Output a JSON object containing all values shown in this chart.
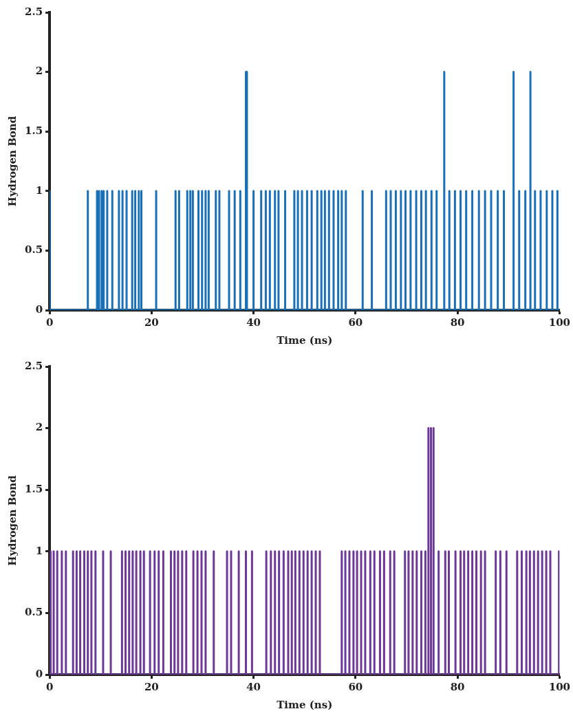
{
  "chart_data": [
    {
      "type": "line",
      "xlabel": "Time (ns)",
      "ylabel": "Hydrogen Bond",
      "xlim": [
        0,
        100
      ],
      "xticks": [
        0,
        20,
        40,
        60,
        80,
        100
      ],
      "ylim": [
        0,
        2.5
      ],
      "yticks": [
        0,
        0.5,
        1,
        1.5,
        2,
        2.5
      ],
      "grid": false,
      "legend": false,
      "marker": "none",
      "line_style": "solid",
      "series": [
        {
          "color": "#1a70b8",
          "x": [
            0,
            0,
            7.5,
            7.5,
            7.5,
            9.3,
            9.3,
            9.3,
            9.7,
            9.7,
            9.7,
            10.2,
            10.2,
            10.2,
            10.6,
            10.6,
            10.6,
            11.3,
            11.3,
            11.3,
            12.3,
            12.3,
            12.3,
            13.6,
            13.6,
            13.6,
            14.3,
            14.3,
            14.3,
            15.1,
            15.1,
            15.1,
            16.2,
            16.2,
            16.2,
            16.8,
            16.8,
            16.8,
            17.5,
            17.5,
            17.5,
            18,
            18,
            18,
            20.9,
            20.9,
            20.9,
            24.7,
            24.7,
            24.7,
            25.4,
            25.4,
            25.4,
            27,
            27,
            27,
            27.6,
            27.6,
            27.6,
            28.1,
            28.1,
            28.1,
            29.2,
            29.2,
            29.2,
            29.9,
            29.9,
            29.9,
            30.6,
            30.6,
            30.6,
            31.2,
            31.2,
            31.2,
            32.6,
            32.6,
            32.6,
            33.3,
            33.3,
            33.3,
            35.2,
            35.2,
            35.2,
            36.3,
            36.3,
            36.3,
            37.4,
            37.4,
            37.4,
            38.5,
            38.5,
            38.5,
            38.7,
            38.7,
            38.7,
            40,
            40,
            40,
            41.5,
            41.5,
            41.5,
            42.4,
            42.4,
            42.4,
            43.2,
            43.2,
            43.2,
            44.2,
            44.2,
            44.2,
            44.9,
            44.9,
            44.9,
            46.2,
            46.2,
            46.2,
            48,
            48,
            48,
            48.7,
            48.7,
            48.7,
            49.5,
            49.5,
            49.5,
            50.5,
            50.5,
            50.5,
            51.4,
            51.4,
            51.4,
            52.5,
            52.5,
            52.5,
            53.3,
            53.3,
            53.3,
            54,
            54,
            54,
            54.8,
            54.8,
            54.8,
            55.7,
            55.7,
            55.7,
            56.6,
            56.6,
            56.6,
            57.3,
            57.3,
            57.3,
            58.1,
            58.1,
            58.1,
            61.4,
            61.4,
            61.4,
            63.2,
            63.2,
            63.2,
            66,
            66,
            66,
            66.9,
            66.9,
            66.9,
            67.9,
            67.9,
            67.9,
            68.9,
            68.9,
            68.9,
            69.8,
            69.8,
            69.8,
            70.8,
            70.8,
            70.8,
            71.9,
            71.9,
            71.9,
            72.9,
            72.9,
            72.9,
            73.8,
            73.8,
            73.8,
            74.9,
            74.9,
            74.9,
            75.9,
            75.9,
            75.9,
            77.4,
            77.4,
            77.4,
            78.4,
            78.4,
            78.4,
            79.5,
            79.5,
            79.5,
            80.6,
            80.6,
            80.6,
            81.7,
            81.7,
            81.7,
            82.9,
            82.9,
            82.9,
            84.2,
            84.2,
            84.2,
            85.4,
            85.4,
            85.4,
            86.6,
            86.6,
            86.6,
            87.9,
            87.9,
            87.9,
            89.1,
            89.1,
            89.1,
            91,
            91,
            91,
            92.1,
            92.1,
            92.1,
            93.3,
            93.3,
            93.3,
            94.3,
            94.3,
            94.3,
            95.2,
            95.2,
            95.2,
            96.3,
            96.3,
            96.3,
            97.5,
            97.5,
            97.5,
            98.6,
            98.6,
            98.6,
            99.6,
            99.6,
            99.6,
            100
          ],
          "values": [
            1,
            0,
            0,
            1,
            0,
            0,
            1,
            0,
            0,
            1,
            0,
            0,
            1,
            0,
            0,
            1,
            0,
            0,
            1,
            0,
            0,
            1,
            0,
            0,
            1,
            0,
            0,
            1,
            0,
            0,
            1,
            0,
            0,
            1,
            0,
            0,
            1,
            0,
            0,
            1,
            0,
            0,
            1,
            0,
            0,
            1,
            0,
            0,
            1,
            0,
            0,
            1,
            0,
            0,
            1,
            0,
            0,
            1,
            0,
            0,
            1,
            0,
            0,
            1,
            0,
            0,
            1,
            0,
            0,
            1,
            0,
            0,
            1,
            0,
            0,
            1,
            0,
            0,
            1,
            0,
            0,
            1,
            0,
            0,
            1,
            0,
            0,
            1,
            0,
            0,
            2,
            0,
            0,
            2,
            0,
            0,
            1,
            0,
            0,
            1,
            0,
            0,
            1,
            0,
            0,
            1,
            0,
            0,
            1,
            0,
            0,
            1,
            0,
            0,
            1,
            0,
            0,
            1,
            0,
            0,
            1,
            0,
            0,
            1,
            0,
            0,
            1,
            0,
            0,
            1,
            0,
            0,
            1,
            0,
            0,
            1,
            0,
            0,
            1,
            0,
            0,
            1,
            0,
            0,
            1,
            0,
            0,
            1,
            0,
            0,
            1,
            0,
            0,
            1,
            0,
            0,
            1,
            0,
            0,
            1,
            0,
            0,
            1,
            0,
            0,
            1,
            0,
            0,
            1,
            0,
            0,
            1,
            0,
            0,
            1,
            0,
            0,
            1,
            0,
            0,
            1,
            0,
            0,
            1,
            0,
            0,
            1,
            0,
            0,
            1,
            0,
            0,
            1,
            0,
            0,
            2,
            0,
            0,
            1,
            0,
            0,
            1,
            0,
            0,
            1,
            0,
            0,
            1,
            0,
            0,
            1,
            0,
            0,
            1,
            0,
            0,
            1,
            0,
            0,
            1,
            0,
            0,
            1,
            0,
            0,
            1,
            0,
            0,
            2,
            0,
            0,
            1,
            0,
            0,
            1,
            0,
            0,
            2,
            0,
            0,
            1,
            0,
            0,
            1,
            0,
            0,
            1,
            0,
            0,
            1,
            0,
            0,
            1,
            0,
            0
          ]
        }
      ]
    },
    {
      "type": "line",
      "xlabel": "Time (ns)",
      "ylabel": "Hydrogen Bond",
      "xlim": [
        0,
        100
      ],
      "xticks": [
        0,
        20,
        40,
        60,
        80,
        100
      ],
      "ylim": [
        0,
        2.5
      ],
      "yticks": [
        0,
        0.5,
        1,
        1.5,
        2,
        2.5
      ],
      "grid": false,
      "legend": false,
      "marker": "none",
      "line_style": "solid",
      "series": [
        {
          "color": "#6c3796",
          "x": [
            0,
            0.2,
            0.2,
            0.2,
            0.8,
            0.8,
            0.8,
            1.5,
            1.5,
            1.5,
            2.4,
            2.4,
            2.4,
            3.2,
            3.2,
            3.2,
            4.6,
            4.6,
            4.6,
            5.3,
            5.3,
            5.3,
            6,
            6,
            6,
            6.8,
            6.8,
            6.8,
            7.5,
            7.5,
            7.5,
            8.2,
            8.2,
            8.2,
            9,
            9,
            9,
            10.5,
            10.5,
            10.5,
            12,
            12,
            12,
            14.2,
            14.2,
            14.2,
            14.9,
            14.9,
            14.9,
            15.6,
            15.6,
            15.6,
            16.3,
            16.3,
            16.3,
            17,
            17,
            17,
            17.8,
            17.8,
            17.8,
            18.5,
            18.5,
            18.5,
            19.7,
            19.7,
            19.7,
            20.6,
            20.6,
            20.6,
            21.4,
            21.4,
            21.4,
            22.3,
            22.3,
            22.3,
            23.8,
            23.8,
            23.8,
            24.5,
            24.5,
            24.5,
            25.2,
            25.2,
            25.2,
            26,
            26,
            26,
            26.8,
            26.8,
            26.8,
            28.2,
            28.2,
            28.2,
            29,
            29,
            29,
            29.8,
            29.8,
            29.8,
            30.6,
            30.6,
            30.6,
            32.2,
            32.2,
            32.2,
            34.8,
            34.8,
            34.8,
            35.6,
            35.6,
            35.6,
            37.1,
            37.1,
            37.1,
            38.5,
            38.5,
            38.5,
            39.7,
            39.7,
            39.7,
            42.5,
            42.5,
            42.5,
            43.4,
            43.4,
            43.4,
            44.2,
            44.2,
            44.2,
            45,
            45,
            45,
            45.9,
            45.9,
            45.9,
            46.8,
            46.8,
            46.8,
            47.5,
            47.5,
            47.5,
            48.2,
            48.2,
            48.2,
            49,
            49,
            49,
            49.8,
            49.8,
            49.8,
            50.6,
            50.6,
            50.6,
            51.4,
            51.4,
            51.4,
            52.2,
            52.2,
            52.2,
            53,
            53,
            53,
            57.3,
            57.3,
            57.3,
            58,
            58,
            58,
            58.8,
            58.8,
            58.8,
            59.6,
            59.6,
            59.6,
            60.3,
            60.3,
            60.3,
            61.1,
            61.1,
            61.1,
            61.9,
            61.9,
            61.9,
            62.9,
            62.9,
            62.9,
            63.7,
            63.7,
            63.7,
            64.8,
            64.8,
            64.8,
            65.6,
            65.6,
            65.6,
            66.8,
            66.8,
            66.8,
            67.6,
            67.6,
            67.6,
            69.7,
            69.7,
            69.7,
            70.4,
            70.4,
            70.4,
            71.2,
            71.2,
            71.2,
            72,
            72,
            72,
            72.9,
            72.9,
            72.9,
            73.7,
            73.7,
            73.7,
            74.3,
            74.3,
            74.3,
            74.8,
            74.8,
            74.8,
            75.3,
            75.3,
            75.3,
            76.3,
            76.3,
            76.3,
            77.6,
            77.6,
            77.6,
            78.3,
            78.3,
            78.3,
            79.6,
            79.6,
            79.6,
            80.6,
            80.6,
            80.6,
            81.3,
            81.3,
            81.3,
            82.1,
            82.1,
            82.1,
            82.9,
            82.9,
            82.9,
            83.7,
            83.7,
            83.7,
            84.6,
            84.6,
            84.6,
            85.4,
            85.4,
            85.4,
            87.5,
            87.5,
            87.5,
            88.4,
            88.4,
            88.4,
            89.6,
            89.6,
            89.6,
            91.7,
            91.7,
            91.7,
            92.6,
            92.6,
            92.6,
            93.5,
            93.5,
            93.5,
            94.2,
            94.2,
            94.2,
            95,
            95,
            95,
            95.8,
            95.8,
            95.8,
            96.6,
            96.6,
            96.6,
            97.4,
            97.4,
            97.4,
            98.2,
            98.2,
            98.2,
            99.9,
            99.9,
            99.9,
            100
          ],
          "values": [
            0,
            0,
            1,
            0,
            0,
            1,
            0,
            0,
            1,
            0,
            0,
            1,
            0,
            0,
            1,
            0,
            0,
            1,
            0,
            0,
            1,
            0,
            0,
            1,
            0,
            0,
            1,
            0,
            0,
            1,
            0,
            0,
            1,
            0,
            0,
            1,
            0,
            0,
            1,
            0,
            0,
            1,
            0,
            0,
            1,
            0,
            0,
            1,
            0,
            0,
            1,
            0,
            0,
            1,
            0,
            0,
            1,
            0,
            0,
            1,
            0,
            0,
            1,
            0,
            0,
            1,
            0,
            0,
            1,
            0,
            0,
            1,
            0,
            0,
            1,
            0,
            0,
            1,
            0,
            0,
            1,
            0,
            0,
            1,
            0,
            0,
            1,
            0,
            0,
            1,
            0,
            0,
            1,
            0,
            0,
            1,
            0,
            0,
            1,
            0,
            0,
            1,
            0,
            0,
            1,
            0,
            0,
            1,
            0,
            0,
            1,
            0,
            0,
            1,
            0,
            0,
            1,
            0,
            0,
            1,
            0,
            0,
            1,
            0,
            0,
            1,
            0,
            0,
            1,
            0,
            0,
            1,
            0,
            0,
            1,
            0,
            0,
            1,
            0,
            0,
            1,
            0,
            0,
            1,
            0,
            0,
            1,
            0,
            0,
            1,
            0,
            0,
            1,
            0,
            0,
            1,
            0,
            0,
            1,
            0,
            0,
            1,
            0,
            0,
            1,
            0,
            0,
            1,
            0,
            0,
            1,
            0,
            0,
            1,
            0,
            0,
            1,
            0,
            0,
            1,
            0,
            0,
            1,
            0,
            0,
            1,
            0,
            0,
            1,
            0,
            0,
            1,
            0,
            0,
            1,
            0,
            0,
            1,
            0,
            0,
            1,
            0,
            0,
            1,
            0,
            0,
            1,
            0,
            0,
            1,
            0,
            0,
            1,
            0,
            0,
            1,
            0,
            0,
            1,
            0,
            0,
            2,
            0,
            0,
            2,
            0,
            0,
            2,
            0,
            0,
            1,
            0,
            0,
            1,
            0,
            0,
            1,
            0,
            0,
            1,
            0,
            0,
            1,
            0,
            0,
            1,
            0,
            0,
            1,
            0,
            0,
            1,
            0,
            0,
            1,
            0,
            0,
            1,
            0,
            0,
            1,
            0,
            0,
            1,
            0,
            0,
            1,
            0,
            0,
            1,
            0,
            0,
            1,
            0,
            0,
            1,
            0,
            0,
            1,
            0,
            0,
            1,
            0,
            0,
            1,
            0,
            0,
            1,
            0,
            0,
            1,
            0,
            0,
            1,
            0,
            0,
            1,
            0,
            0,
            1,
            0,
            0
          ]
        }
      ]
    }
  ]
}
